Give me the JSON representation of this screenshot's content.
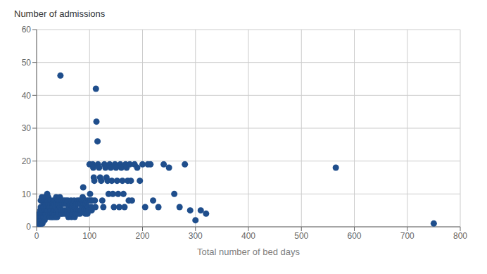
{
  "chart_data": {
    "type": "scatter",
    "ylabel": "Number of admissions",
    "xlabel": "Total number of bed days",
    "xlim": [
      0,
      800
    ],
    "ylim": [
      0,
      60
    ],
    "xticks": [
      0,
      100,
      200,
      300,
      400,
      500,
      600,
      700,
      800
    ],
    "yticks": [
      0,
      10,
      20,
      30,
      40,
      50,
      60
    ],
    "color": "#1F4E8C",
    "grid": true,
    "x": [
      2,
      3,
      3,
      4,
      4,
      5,
      5,
      5,
      6,
      6,
      7,
      7,
      7,
      7,
      8,
      8,
      8,
      8,
      9,
      9,
      9,
      10,
      10,
      10,
      10,
      11,
      11,
      12,
      12,
      12,
      13,
      13,
      14,
      14,
      15,
      15,
      15,
      16,
      16,
      16,
      17,
      17,
      18,
      18,
      19,
      19,
      20,
      20,
      20,
      21,
      21,
      22,
      22,
      23,
      23,
      24,
      24,
      25,
      25,
      26,
      26,
      27,
      27,
      28,
      29,
      29,
      30,
      30,
      31,
      31,
      32,
      32,
      33,
      33,
      34,
      34,
      35,
      35,
      36,
      36,
      37,
      37,
      38,
      38,
      39,
      40,
      40,
      41,
      41,
      42,
      43,
      44,
      44,
      45,
      46,
      47,
      47,
      48,
      49,
      50,
      51,
      52,
      53,
      54,
      55,
      56,
      57,
      58,
      59,
      60,
      61,
      62,
      63,
      64,
      65,
      66,
      67,
      68,
      69,
      70,
      71,
      72,
      73,
      74,
      75,
      76,
      77,
      78,
      79,
      80,
      81,
      82,
      83,
      84,
      85,
      86,
      87,
      88,
      89,
      90,
      91,
      92,
      93,
      94,
      95,
      96,
      97,
      98,
      99,
      100,
      101,
      102,
      103,
      104,
      105,
      106,
      107,
      108,
      109,
      110,
      111,
      112,
      113,
      115,
      116,
      118,
      120,
      122,
      124,
      126,
      128,
      130,
      132,
      134,
      136,
      138,
      140,
      142,
      144,
      146,
      148,
      150,
      152,
      154,
      156,
      158,
      160,
      162,
      164,
      166,
      168,
      170,
      172,
      174,
      176,
      178,
      180,
      185,
      190,
      195,
      200,
      205,
      210,
      215,
      220,
      230,
      240,
      250,
      260,
      270,
      280,
      290,
      300,
      310,
      320,
      565,
      750
    ],
    "y": [
      1,
      2,
      3,
      1,
      2,
      1,
      2,
      4,
      1,
      3,
      2,
      4,
      5,
      1,
      2,
      3,
      6,
      8,
      1,
      3,
      5,
      2,
      4,
      6,
      9,
      1,
      3,
      2,
      5,
      8,
      3,
      6,
      4,
      7,
      2,
      5,
      8,
      3,
      6,
      9,
      4,
      7,
      5,
      8,
      3,
      6,
      4,
      7,
      10,
      5,
      8,
      6,
      9,
      4,
      7,
      5,
      8,
      3,
      6,
      4,
      7,
      5,
      8,
      3,
      4,
      7,
      3,
      6,
      4,
      7,
      5,
      8,
      3,
      6,
      4,
      7,
      5,
      8,
      3,
      6,
      4,
      9,
      5,
      7,
      3,
      5,
      8,
      4,
      7,
      5,
      8,
      6,
      9,
      46,
      4,
      5,
      8,
      4,
      7,
      5,
      8,
      4,
      7,
      5,
      8,
      4,
      7,
      5,
      8,
      3,
      6,
      4,
      7,
      5,
      8,
      3,
      6,
      4,
      7,
      5,
      8,
      3,
      6,
      4,
      7,
      5,
      8,
      4,
      7,
      5,
      8,
      4,
      7,
      5,
      8,
      6,
      9,
      12,
      7,
      5,
      8,
      4,
      7,
      5,
      8,
      4,
      6,
      5,
      8,
      19,
      10,
      8,
      6,
      5,
      8,
      19,
      18,
      15,
      14,
      8,
      6,
      42,
      32,
      26,
      19,
      18,
      15,
      14,
      8,
      6,
      19,
      18,
      15,
      14,
      10,
      19,
      18,
      14,
      10,
      6,
      19,
      18,
      14,
      10,
      6,
      19,
      18,
      14,
      10,
      6,
      19,
      18,
      14,
      8,
      19,
      14,
      8,
      19,
      18,
      14,
      19,
      6,
      19,
      19,
      8,
      6,
      19,
      18,
      10,
      6,
      19,
      5,
      2,
      5,
      4,
      18,
      1
    ]
  }
}
